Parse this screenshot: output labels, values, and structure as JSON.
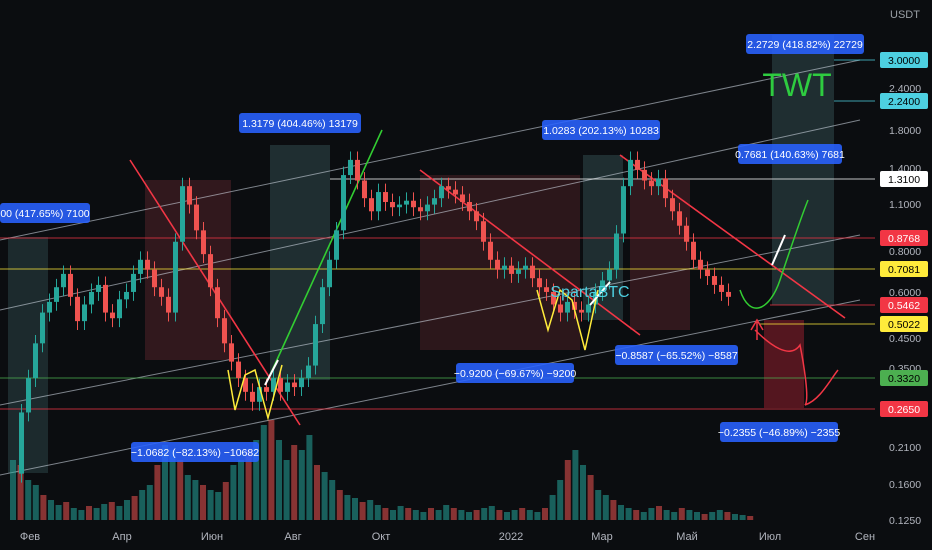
{
  "chart_data": {
    "type": "candlestick",
    "currency_label": "USDT",
    "watermark": "TWT",
    "author": "SpartaBTC",
    "x_labels": [
      "Фев",
      "Апр",
      "Июн",
      "Авг",
      "Окт",
      "2022",
      "Мар",
      "Май",
      "Июл",
      "Сен"
    ],
    "y_ticks": [
      "3.0000",
      "2.4000",
      "1.8000",
      "1.4000",
      "1.1000",
      "0.8000",
      "0.6000",
      "0.4500",
      "0.3500",
      "0.2600",
      "0.2100",
      "0.1600",
      "0.1250"
    ],
    "levels": [
      {
        "value": 3.0,
        "label": "3.0000",
        "color": "#4dd0e1"
      },
      {
        "value": 2.24,
        "label": "2.2400",
        "color": "#4dd0e1"
      },
      {
        "value": 1.31,
        "label": "1.3100",
        "color": "#ffffff"
      },
      {
        "value": 0.8768,
        "label": "0.8768",
        "color": "#f23645"
      },
      {
        "value": 0.7081,
        "label": "0.7081",
        "color": "#ffeb3b"
      },
      {
        "value": 0.5462,
        "label": "0.5462",
        "color": "#f23645"
      },
      {
        "value": 0.5022,
        "label": "0.5022",
        "color": "#ffeb3b"
      },
      {
        "value": 0.332,
        "label": "0.3320",
        "color": "#4caf50"
      },
      {
        "value": 0.265,
        "label": "0.2650",
        "color": "#f23645"
      }
    ],
    "annotations": [
      "2.2729 (418.82%) 22729",
      "1.3179 (404.46%) 13179",
      "1.0283 (202.13%) 10283",
      "0.7681 (140.63%) 7681",
      "00 (417.65%) 7100",
      "−0.9200 (−69.67%) −9200",
      "−0.8587 (−65.52%) −8587",
      "−1.0682 (−82.13%) −10682",
      "−0.2355 (−46.89%) −2355"
    ],
    "price_path": [
      0.17,
      0.26,
      0.33,
      0.42,
      0.52,
      0.56,
      0.62,
      0.68,
      0.58,
      0.49,
      0.55,
      0.6,
      0.63,
      0.52,
      0.5,
      0.57,
      0.6,
      0.68,
      0.75,
      0.7,
      0.62,
      0.58,
      0.52,
      0.85,
      1.25,
      1.1,
      0.92,
      0.78,
      0.62,
      0.5,
      0.42,
      0.37,
      0.33,
      0.3,
      0.28,
      0.31,
      0.3,
      0.33,
      0.3,
      0.32,
      0.31,
      0.33,
      0.36,
      0.48,
      0.62,
      0.75,
      0.92,
      1.35,
      1.5,
      1.3,
      1.15,
      1.05,
      1.2,
      1.12,
      1.08,
      1.1,
      1.13,
      1.08,
      1.05,
      1.1,
      1.15,
      1.25,
      1.22,
      1.18,
      1.12,
      1.05,
      0.98,
      0.85,
      0.75,
      0.7,
      0.72,
      0.68,
      0.7,
      0.72,
      0.66,
      0.62,
      0.6,
      0.55,
      0.52,
      0.56,
      0.53,
      0.52,
      0.55,
      0.6,
      0.65,
      0.7,
      0.9,
      1.25,
      1.5,
      1.4,
      1.3,
      1.25,
      1.32,
      1.15,
      1.05,
      0.95,
      0.85,
      0.75,
      0.7,
      0.67,
      0.63,
      0.6,
      0.58
    ]
  }
}
